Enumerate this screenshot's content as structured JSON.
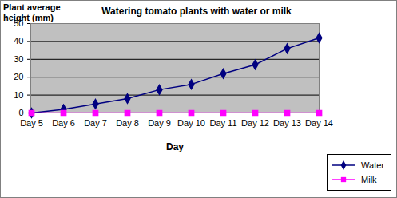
{
  "chart_data": {
    "type": "line",
    "title": "Watering tomato plants with water or milk",
    "y_label": "Plant average height (mm)",
    "x_label": "Day",
    "categories": [
      "Day 5",
      "Day 6",
      "Day 7",
      "Day 8",
      "Day 9",
      "Day 10",
      "Day 11",
      "Day 12",
      "Day 13",
      "Day 14"
    ],
    "series": [
      {
        "name": "Water",
        "color": "#000080",
        "marker": "diamond",
        "values": [
          0,
          2,
          5,
          8,
          13,
          16,
          22,
          27,
          36,
          42
        ]
      },
      {
        "name": "Milk",
        "color": "#ff00ff",
        "marker": "square",
        "values": [
          0,
          0,
          0,
          0,
          0,
          0,
          0,
          0,
          0,
          0
        ]
      }
    ],
    "ylim": [
      0,
      50
    ],
    "yticks": [
      0,
      10,
      20,
      30,
      40,
      50
    ],
    "grid": true,
    "legend": "bottom-right"
  }
}
